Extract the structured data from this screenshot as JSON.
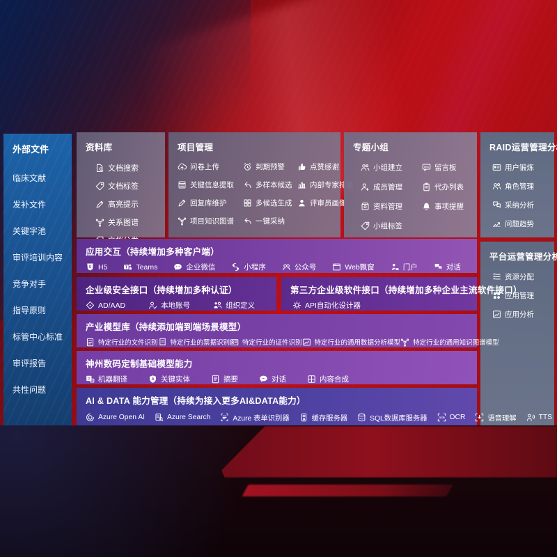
{
  "colors": {
    "background_red": "#bb0f17",
    "sidebar_blue": "#1d63a9",
    "panel_gray": "#6e6880",
    "right_panel_slate": "#5c6d85",
    "row_purple": "#7d44a6",
    "row_dark_purple": "#4e2380",
    "row_indigo": "#3e3a94",
    "text": "#ffffff"
  },
  "sidebar": {
    "title": "外部文件",
    "items": [
      "临床文献",
      "发补文件",
      "关键字池",
      "审评培训内容",
      "竞争对手",
      "指导原则",
      "标管中心标准",
      "审评报告",
      "共性问题"
    ]
  },
  "panels": {
    "ziliaoku": {
      "title": "资料库",
      "items": [
        {
          "icon": "doc-search",
          "label": "文档搜索"
        },
        {
          "icon": "tag",
          "label": "文档标签"
        },
        {
          "icon": "pen",
          "label": "高亮提示"
        },
        {
          "icon": "network",
          "label": "关系图谱"
        },
        {
          "icon": "docs",
          "label": "文档分类"
        }
      ]
    },
    "xiangmu": {
      "title": "项目管理",
      "items": [
        {
          "icon": "cloud-up",
          "label": "问卷上传"
        },
        {
          "icon": "alarm",
          "label": "到期预警"
        },
        {
          "icon": "thumb",
          "label": "点赞感谢"
        },
        {
          "icon": "extract",
          "label": "关键信息提取"
        },
        {
          "icon": "reply",
          "label": "多样本候选"
        },
        {
          "icon": "rank",
          "label": "内部专家排名"
        },
        {
          "icon": "pen",
          "label": "回复库维护"
        },
        {
          "icon": "grid4",
          "label": "多候选生成"
        },
        {
          "icon": "person",
          "label": "评审员画像"
        },
        {
          "icon": "network",
          "label": "项目知识图谱"
        },
        {
          "icon": "adopt",
          "label": "一键采纳"
        }
      ]
    },
    "zhuanti": {
      "title": "专题小组",
      "items": [
        {
          "icon": "people",
          "label": "小组建立"
        },
        {
          "icon": "bbs",
          "label": "留言板"
        },
        {
          "icon": "person-add",
          "label": "成员管理"
        },
        {
          "icon": "clipboard",
          "label": "代办列表"
        },
        {
          "icon": "archive",
          "label": "资料管理"
        },
        {
          "icon": "bell",
          "label": "事项提醒"
        },
        {
          "icon": "tag",
          "label": "小组标签"
        }
      ]
    },
    "raid": {
      "title": "RAID运营管理分析",
      "items": [
        {
          "icon": "id-card",
          "label": "用户锻炼"
        },
        {
          "icon": "people",
          "label": "角色管理"
        },
        {
          "icon": "qa",
          "label": "采纳分析"
        },
        {
          "icon": "trend",
          "label": "问题趋势"
        }
      ]
    },
    "pingtai": {
      "title": "平台运营管理分析",
      "items": [
        {
          "icon": "list",
          "label": "资源分配"
        },
        {
          "icon": "apps",
          "label": "应用管理"
        },
        {
          "icon": "chart-box",
          "label": "应用分析"
        }
      ]
    }
  },
  "rows": {
    "interaction": {
      "title": "应用交互（持续增加多种客户端）",
      "items": [
        {
          "icon": "h5",
          "label": "H5"
        },
        {
          "icon": "teams",
          "label": "Teams"
        },
        {
          "icon": "wechat",
          "label": "企业微信"
        },
        {
          "icon": "miniapp",
          "label": "小程序"
        },
        {
          "icon": "official",
          "label": "公众号"
        },
        {
          "icon": "webwin",
          "label": "Web飘窗"
        },
        {
          "icon": "portal",
          "label": "门户"
        },
        {
          "icon": "dialog",
          "label": "对话"
        }
      ]
    },
    "security": {
      "title": "企业级安全接口（持续增加多种认证）",
      "items": [
        {
          "icon": "ad",
          "label": "AD/AAD"
        },
        {
          "icon": "account",
          "label": "本地账号"
        },
        {
          "icon": "org",
          "label": "组织定义"
        }
      ]
    },
    "thirdparty": {
      "title": "第三方企业级软件接口（持续增加多种企业主流软件接口）",
      "items": [
        {
          "icon": "api",
          "label": "API自动化设计器"
        }
      ]
    },
    "models": {
      "title": "产业模型库（持续添加端到端场景模型）",
      "items": [
        {
          "icon": "doc-scan",
          "label": "特定行业的文件识别"
        },
        {
          "icon": "receipt",
          "label": "特定行业的票据识别"
        },
        {
          "icon": "cert",
          "label": "特定行业的证件识别"
        },
        {
          "icon": "chart-img",
          "label": "特定行业的通用数据分析模型"
        },
        {
          "icon": "network",
          "label": "特定行业的通用知识图谱模型"
        }
      ]
    },
    "digital": {
      "title": "神州数码定制基础模型能力",
      "items": [
        {
          "icon": "translate",
          "label": "机器翻译"
        },
        {
          "icon": "entity",
          "label": "关键实体"
        },
        {
          "icon": "summary",
          "label": "摘要"
        },
        {
          "icon": "chat",
          "label": "对话"
        },
        {
          "icon": "compose",
          "label": "内容合成"
        }
      ]
    },
    "aidata": {
      "title": "AI & DATA 能力管理（持续为接入更多AI&DATA能力）",
      "items": [
        {
          "icon": "openai",
          "label": "Azure Open AI"
        },
        {
          "icon": "az-search",
          "label": "Azure Search"
        },
        {
          "icon": "az-form",
          "label": "Azure 表单识别器"
        },
        {
          "icon": "cache",
          "label": "缓存服务器"
        },
        {
          "icon": "sql",
          "label": "SQL数据库服务器"
        },
        {
          "icon": "ocr",
          "label": "OCR"
        },
        {
          "icon": "speech",
          "label": "语音理解"
        },
        {
          "icon": "tts",
          "label": "TTS"
        }
      ]
    }
  }
}
